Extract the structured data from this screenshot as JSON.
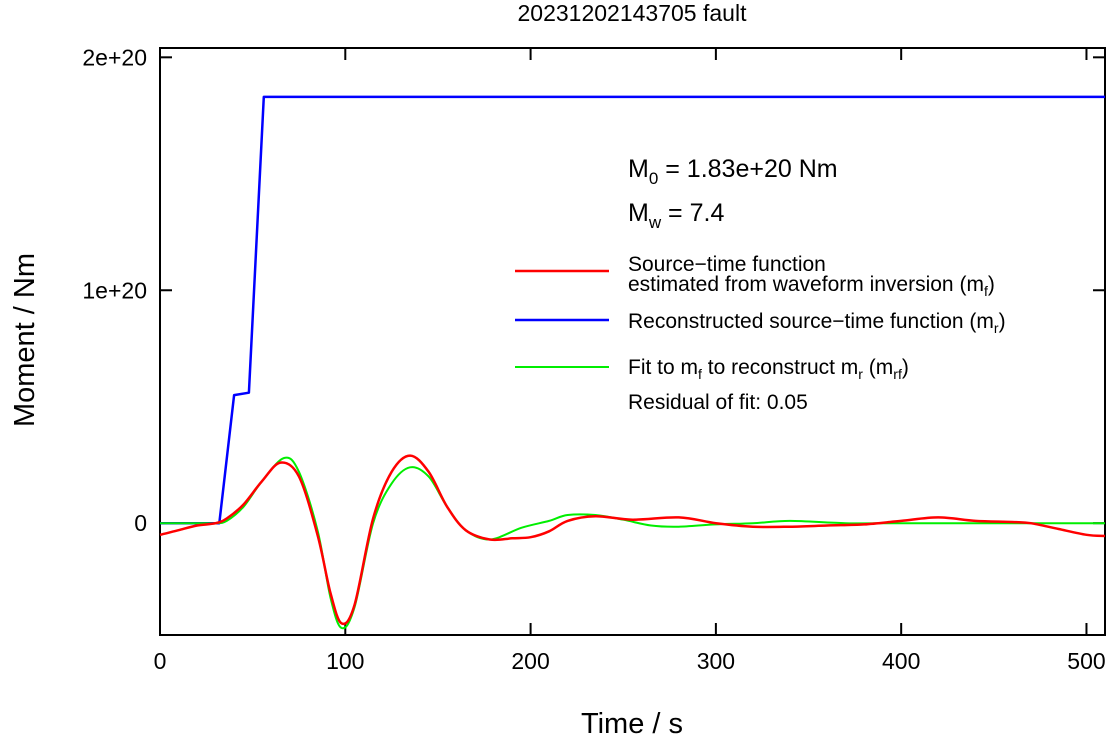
{
  "chart_data": {
    "type": "line",
    "title": "20231202143705 fault",
    "xlabel": "Time / s",
    "ylabel": "Moment / Nm",
    "xlim": [
      0,
      510
    ],
    "ylim": [
      -4.8e+19,
      2.04e+20
    ],
    "x_ticks": [
      0,
      100,
      200,
      300,
      400,
      500
    ],
    "x_tick_labels": [
      "0",
      "100",
      "200",
      "300",
      "400",
      "500"
    ],
    "y_ticks": [
      0,
      1e+20,
      2e+20
    ],
    "y_tick_labels": [
      "0",
      "1e+20",
      "2e+20"
    ],
    "grid": false,
    "legend_position": "right",
    "annotations": {
      "m0_prefix": "M",
      "m0_sub": "0",
      "m0_value": " = 1.83e+20 Nm",
      "mw_prefix": "M",
      "mw_sub": "w",
      "mw_value": " = 7.4",
      "residual": "Residual of fit: 0.05"
    },
    "legend": [
      {
        "line1": "Source−time function",
        "line2_main": "estimated from waveform inversion (m",
        "line2_sub": "f",
        "line2_end": ")",
        "color": "#ff0000"
      },
      {
        "main": "Reconstructed source−time function (m",
        "sub": "r",
        "end": ")",
        "color": "#0000ff"
      },
      {
        "p1": "Fit to m",
        "s1": "f",
        "p2": " to reconstruct m",
        "s2": "r",
        "p3": " (m",
        "s3": "rf",
        "p4": ")",
        "color": "#00ee00"
      }
    ],
    "series": [
      {
        "color": "#ff0000",
        "x": [
          0,
          10,
          20,
          30,
          36,
          45,
          55,
          65,
          75,
          85,
          92,
          98,
          105,
          115,
          125,
          135,
          145,
          155,
          165,
          178,
          190,
          200,
          210,
          220,
          235,
          255,
          280,
          300,
          320,
          340,
          360,
          380,
          400,
          420,
          440,
          460,
          470,
          485,
          500,
          510
        ],
        "y": [
          -5e+18,
          -3e+18,
          -1e+18,
          0,
          2e+18,
          8e+18,
          1.8e+19,
          2.6e+19,
          2e+19,
          -5e+18,
          -3e+19,
          -4.3e+19,
          -3.5e+19,
          2e+18,
          2.2e+19,
          2.9e+19,
          2.2e+19,
          7e+18,
          -3e+18,
          -7e+18,
          -6.5e+18,
          -6e+18,
          -3.5e+18,
          1e+18,
          3e+18,
          1.5e+18,
          2.5e+18,
          0,
          -1.5e+18,
          -1.5e+18,
          -1e+18,
          -5e+17,
          1e+18,
          2.5e+18,
          1e+18,
          5e+17,
          0,
          -2.5e+18,
          -5e+18,
          -5.5e+18
        ]
      },
      {
        "color": "#0000ff",
        "x": [
          0,
          32,
          40,
          48,
          56,
          510
        ],
        "y": [
          0,
          0,
          5.5e+19,
          5.6e+19,
          1.83e+20,
          1.83e+20
        ]
      },
      {
        "color": "#00ee00",
        "x": [
          0,
          20,
          30,
          36,
          45,
          55,
          67,
          75,
          85,
          92,
          98,
          105,
          115,
          125,
          135,
          145,
          155,
          165,
          178,
          195,
          210,
          220,
          235,
          250,
          265,
          280,
          300,
          320,
          340,
          370,
          400,
          440,
          480,
          510
        ],
        "y": [
          0,
          0,
          0,
          1e+18,
          7e+18,
          1.8e+19,
          2.8e+19,
          2.2e+19,
          -3e+18,
          -3.2e+19,
          -4.5e+19,
          -3.6e+19,
          0,
          1.7e+19,
          2.4e+19,
          2e+19,
          7e+18,
          -3e+18,
          -7e+18,
          -2e+18,
          1e+18,
          3.5e+18,
          3.5e+18,
          1.5e+18,
          -1e+18,
          -1.5e+18,
          -5e+17,
          0,
          1e+18,
          0,
          0,
          0,
          0,
          0
        ]
      }
    ]
  }
}
